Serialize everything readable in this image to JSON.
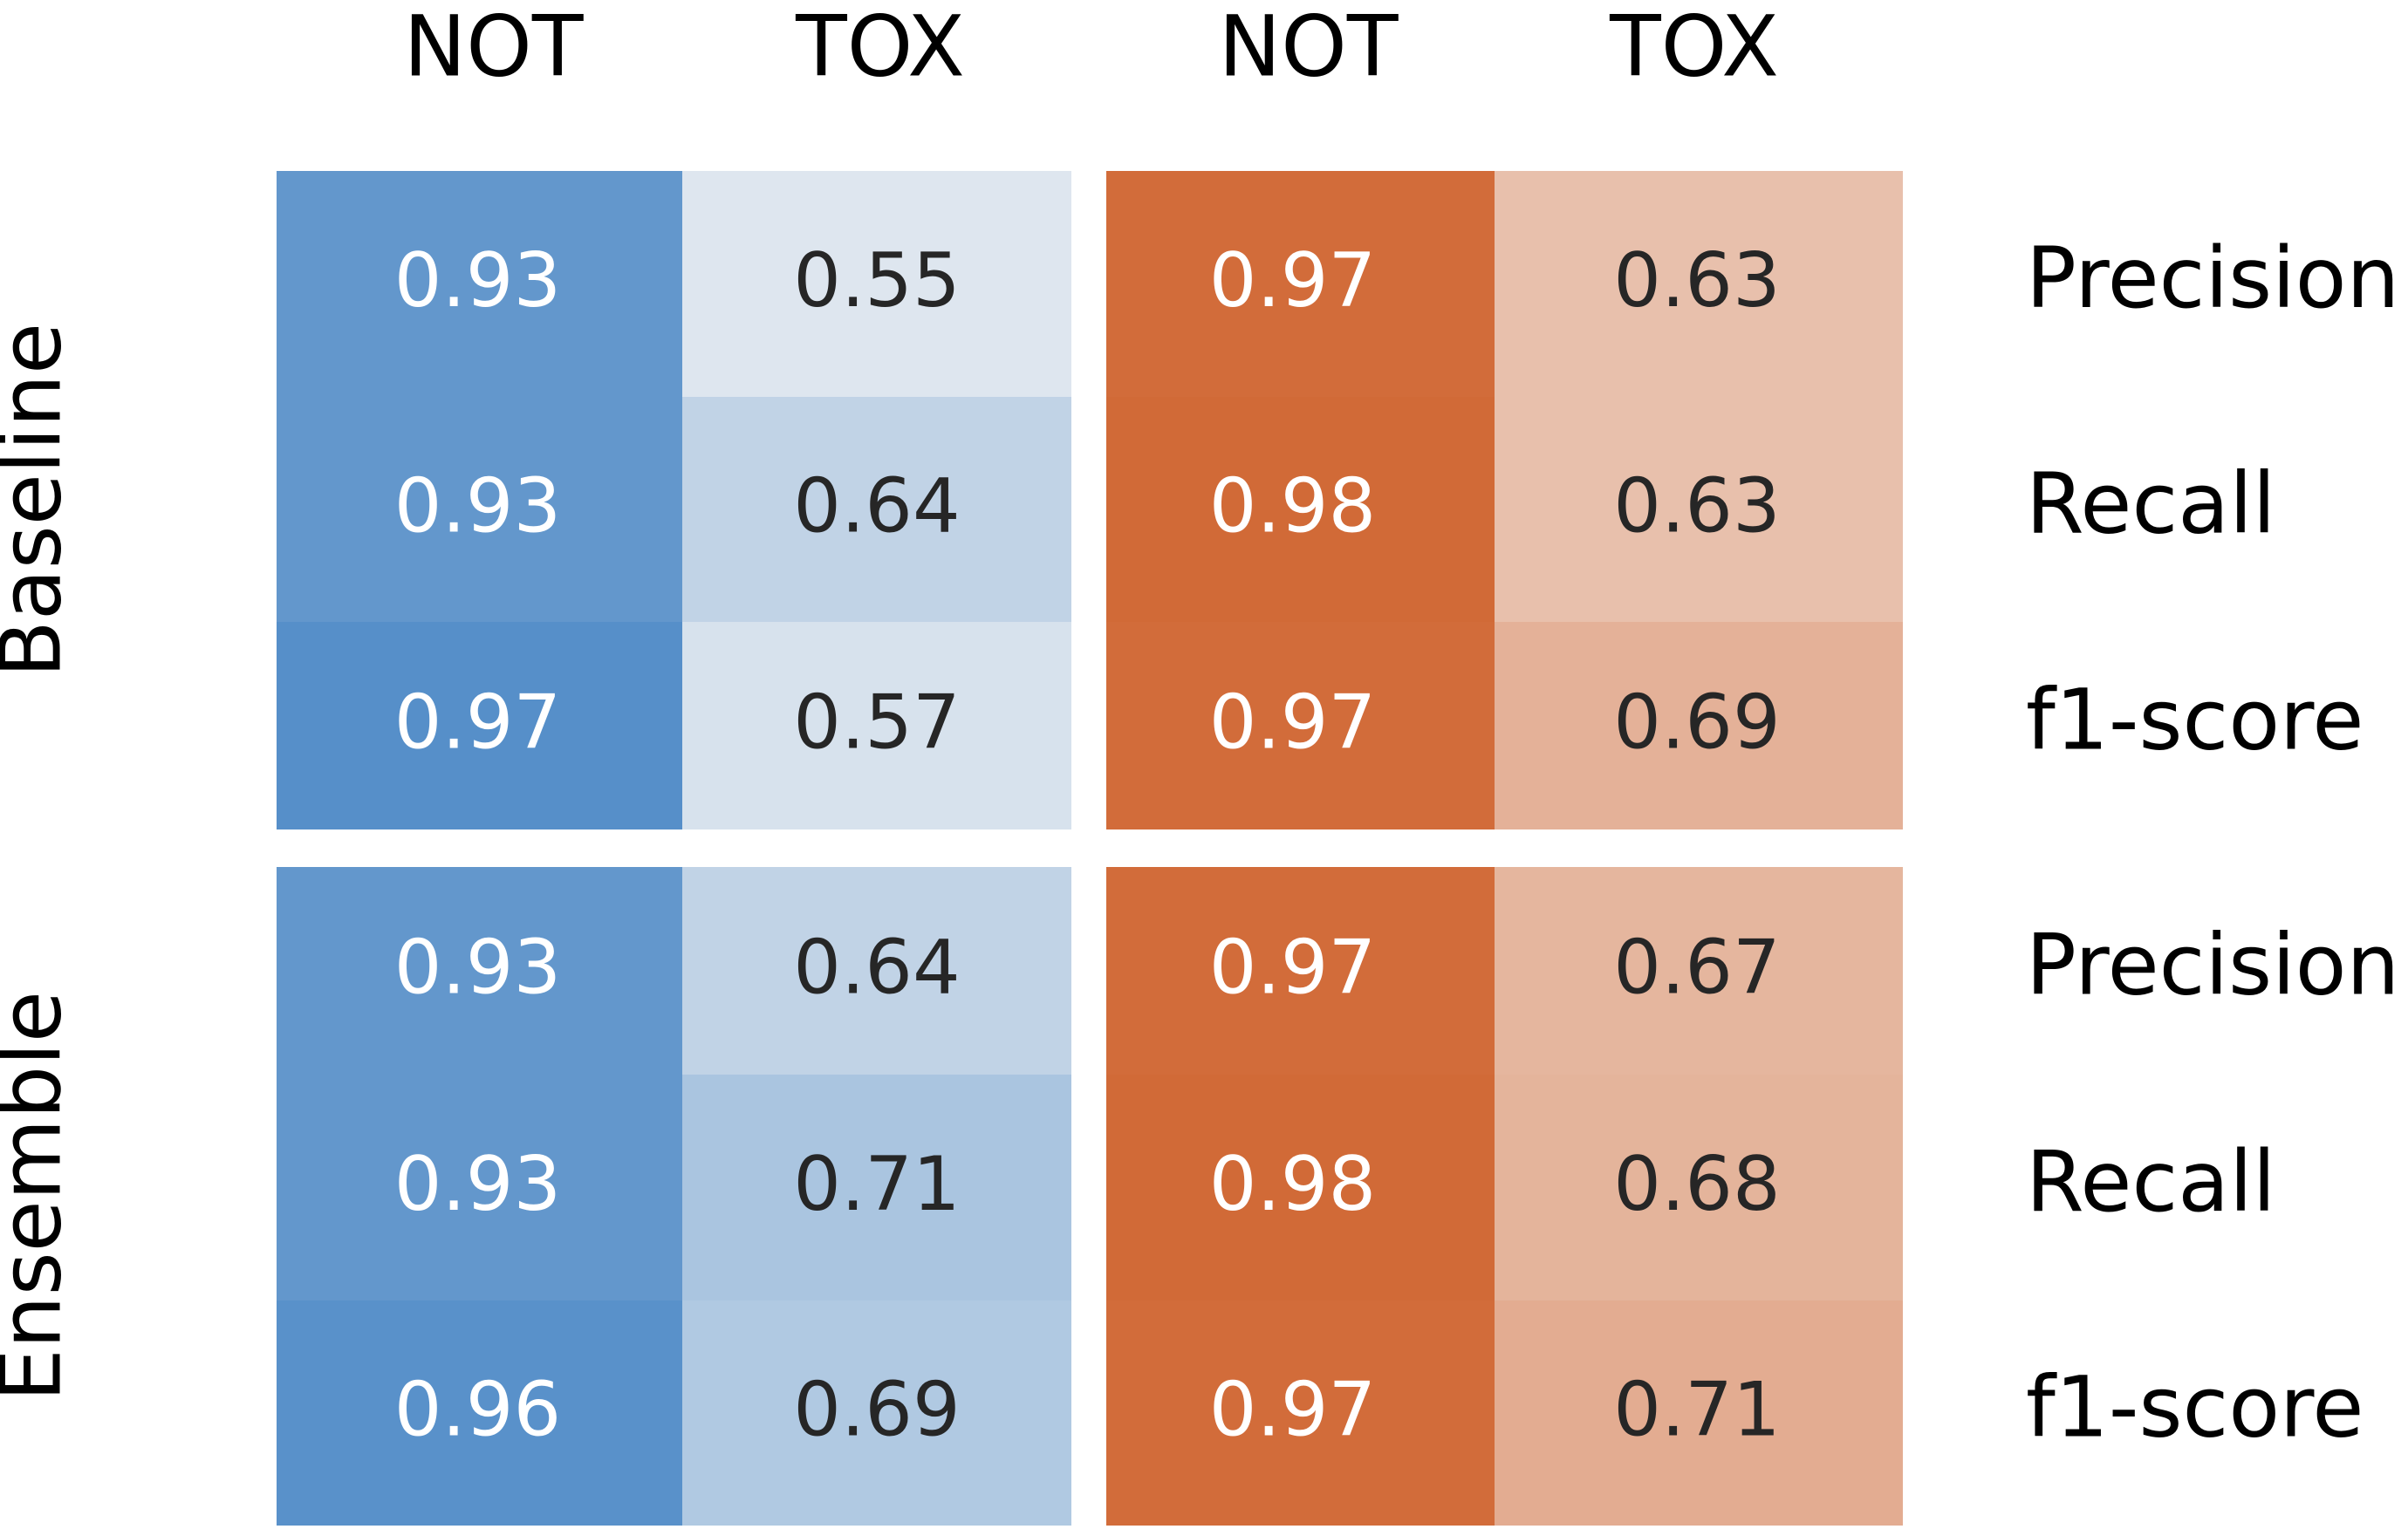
{
  "chart_data": {
    "type": "heatmap",
    "title": "",
    "columns": [
      "NOT",
      "TOX",
      "NOT",
      "TOX"
    ],
    "groups": [
      {
        "name": "Baseline",
        "rows": [
          "Precision",
          "Recall",
          "f1-score"
        ],
        "values": [
          [
            0.93,
            0.55,
            0.97,
            0.63
          ],
          [
            0.93,
            0.64,
            0.98,
            0.63
          ],
          [
            0.97,
            0.57,
            0.97,
            0.69
          ]
        ]
      },
      {
        "name": "Ensemble",
        "rows": [
          "Precision",
          "Recall",
          "f1-score"
        ],
        "values": [
          [
            0.93,
            0.64,
            0.97,
            0.67
          ],
          [
            0.93,
            0.71,
            0.98,
            0.68
          ],
          [
            0.96,
            0.69,
            0.97,
            0.71
          ]
        ]
      }
    ],
    "colormaps": {
      "blue": {
        "low": "#eef0f3",
        "high": "#4c89c6"
      },
      "orange": {
        "low": "#f0e0d7",
        "high": "#d06530"
      }
    },
    "value_range": [
      0.5,
      1.0
    ],
    "text_colors": {
      "dark": "#262626",
      "light": "#ffffff"
    }
  }
}
